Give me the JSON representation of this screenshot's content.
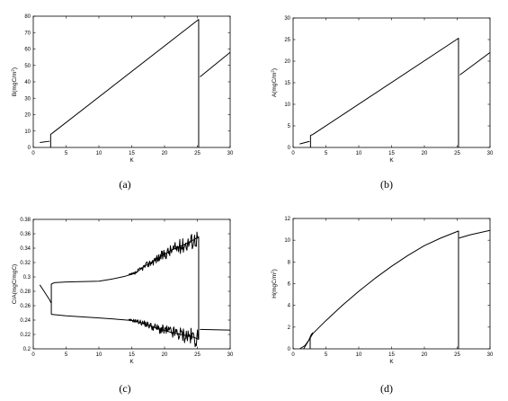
{
  "chart_data": [
    {
      "panel": "(a)",
      "type": "line",
      "xlabel": "K",
      "ylabel": "B(mgC/m²)",
      "xlim": [
        0,
        30
      ],
      "ylim": [
        0,
        80
      ],
      "xticks": [
        0,
        5,
        10,
        15,
        20,
        25,
        30
      ],
      "yticks": [
        0,
        10,
        20,
        30,
        40,
        50,
        60,
        70,
        80
      ],
      "grid": false,
      "series": [
        {
          "points": [
            [
              1,
              3
            ],
            [
              2.5,
              3.8
            ]
          ]
        },
        {
          "points": [
            [
              2.65,
              0
            ],
            [
              2.65,
              8
            ],
            [
              3,
              9
            ],
            [
              25.2,
              78
            ],
            [
              25.2,
              0
            ]
          ]
        },
        {
          "points": [
            [
              25.4,
              43
            ],
            [
              30,
              58
            ]
          ]
        }
      ]
    },
    {
      "panel": "(b)",
      "type": "line",
      "xlabel": "K",
      "ylabel": "A(mgC/m²)",
      "xlim": [
        0,
        30
      ],
      "ylim": [
        0,
        30
      ],
      "xticks": [
        0,
        5,
        10,
        15,
        20,
        25,
        30
      ],
      "yticks": [
        0,
        5,
        10,
        15,
        20,
        25,
        30
      ],
      "grid": false,
      "series": [
        {
          "points": [
            [
              1,
              0.8
            ],
            [
              2.5,
              1.4
            ]
          ]
        },
        {
          "points": [
            [
              2.65,
              0
            ],
            [
              2.65,
              2.8
            ],
            [
              3,
              3
            ],
            [
              25.2,
              25.3
            ],
            [
              25.2,
              0
            ]
          ]
        },
        {
          "points": [
            [
              25.4,
              16.8
            ],
            [
              30,
              22
            ]
          ]
        }
      ]
    },
    {
      "panel": "(c)",
      "type": "line",
      "xlabel": "K",
      "ylabel": "C/A(mgC/mgC)",
      "xlim": [
        0,
        30
      ],
      "ylim": [
        0.2,
        0.38
      ],
      "xticks": [
        0,
        5,
        10,
        15,
        20,
        25,
        30
      ],
      "yticks": [
        0.2,
        0.22,
        0.24,
        0.26,
        0.28,
        0.3,
        0.32,
        0.34,
        0.36,
        0.38
      ],
      "grid": false,
      "series": [
        {
          "points": [
            [
              1,
              0.289
            ],
            [
              1.5,
              0.282
            ],
            [
              2,
              0.275
            ],
            [
              2.5,
              0.268
            ],
            [
              2.7,
              0.264
            ]
          ]
        },
        {
          "points": [
            [
              2.75,
              0.248
            ],
            [
              2.75,
              0.29
            ],
            [
              3.2,
              0.292
            ],
            [
              5,
              0.293
            ],
            [
              10,
              0.294
            ],
            [
              12,
              0.297
            ],
            [
              14,
              0.301
            ],
            [
              15.5,
              0.305
            ],
            [
              17,
              0.315
            ],
            [
              19,
              0.326
            ],
            [
              21,
              0.337
            ],
            [
              23,
              0.345
            ],
            [
              24.5,
              0.352
            ],
            [
              25.2,
              0.356
            ]
          ]
        },
        {
          "points": [
            [
              2.75,
              0.248
            ],
            [
              5,
              0.246
            ],
            [
              10,
              0.243
            ],
            [
              13,
              0.241
            ],
            [
              15.5,
              0.239
            ],
            [
              17,
              0.235
            ],
            [
              19,
              0.228
            ],
            [
              21,
              0.223
            ],
            [
              23,
              0.219
            ],
            [
              24.5,
              0.216
            ],
            [
              25.2,
              0.213
            ]
          ]
        },
        {
          "points": [
            [
              25.2,
              0.213
            ],
            [
              25.2,
              0.356
            ]
          ]
        },
        {
          "points": [
            [
              25.4,
              0.227
            ],
            [
              30,
              0.226
            ]
          ]
        }
      ]
    },
    {
      "panel": "(d)",
      "type": "line",
      "xlabel": "K",
      "ylabel": "H(mgC/m²)",
      "xlim": [
        0,
        30
      ],
      "ylim": [
        0,
        12
      ],
      "xticks": [
        0,
        5,
        10,
        15,
        20,
        25,
        30
      ],
      "yticks": [
        0,
        2,
        4,
        6,
        8,
        10,
        12
      ],
      "grid": false,
      "series": [
        {
          "points": [
            [
              1,
              0
            ],
            [
              1.8,
              0.3
            ],
            [
              2.4,
              0.8
            ],
            [
              2.75,
              1.3
            ],
            [
              3,
              1.5
            ]
          ]
        },
        {
          "points": [
            [
              2.6,
              0
            ],
            [
              2.6,
              1
            ]
          ]
        },
        {
          "points": [
            [
              1.6,
              0
            ],
            [
              2.2,
              0.6
            ],
            [
              3,
              1.4
            ],
            [
              5,
              2.6
            ],
            [
              7.5,
              4
            ],
            [
              10,
              5.3
            ],
            [
              12.5,
              6.5
            ],
            [
              15,
              7.6
            ],
            [
              17.5,
              8.6
            ],
            [
              20,
              9.5
            ],
            [
              22.5,
              10.2
            ],
            [
              25,
              10.8
            ],
            [
              25.2,
              10.85
            ],
            [
              25.2,
              0
            ]
          ]
        },
        {
          "points": [
            [
              25.3,
              10.2
            ],
            [
              27,
              10.5
            ],
            [
              30,
              10.9
            ]
          ]
        }
      ]
    }
  ]
}
